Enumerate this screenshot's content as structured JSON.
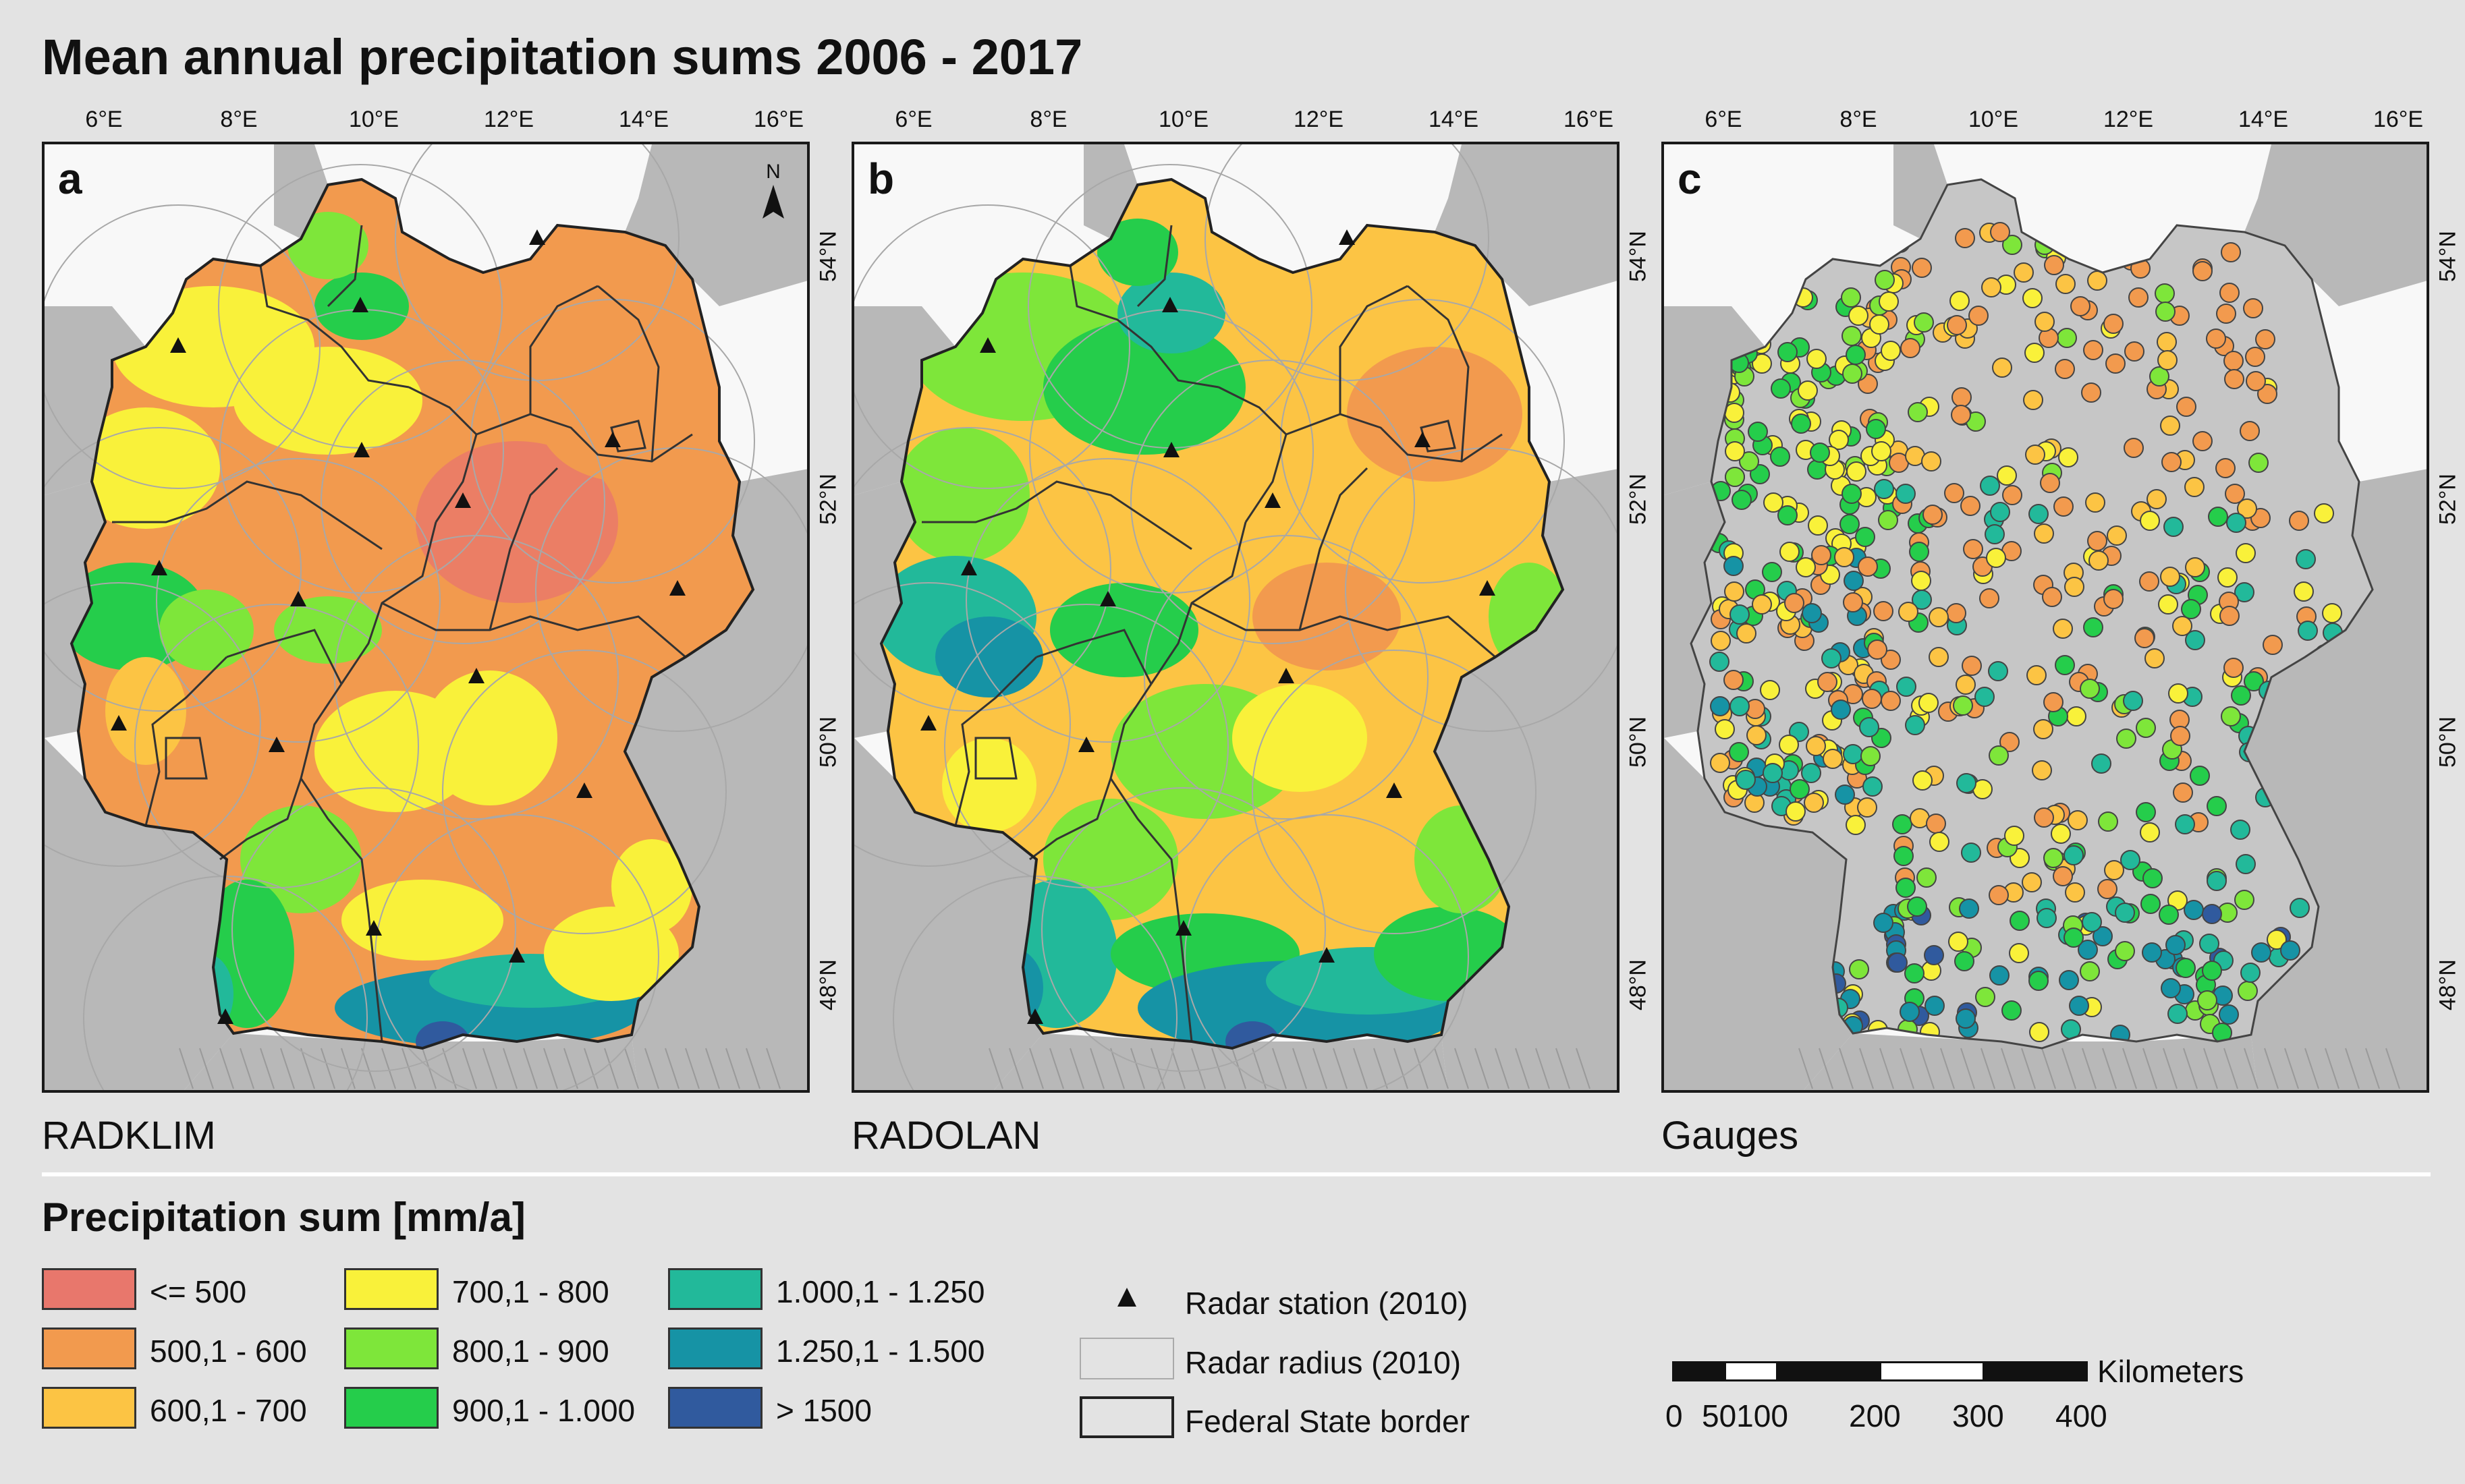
{
  "title": "Mean annual precipitation sums 2006 - 2017",
  "x_ticks": [
    "6°E",
    "8°E",
    "10°E",
    "12°E",
    "14°E",
    "16°E"
  ],
  "y_ticks": [
    "54°N",
    "52°N",
    "50°N",
    "48°N"
  ],
  "panels": [
    {
      "letter": "a",
      "name": "RADKLIM"
    },
    {
      "letter": "b",
      "name": "RADOLAN"
    },
    {
      "letter": "c",
      "name": "Gauges"
    }
  ],
  "north_arrow": "N",
  "legend": {
    "title": "Precipitation sum [mm/a]",
    "classes": [
      {
        "label": "<= 500",
        "color": "#e8776c"
      },
      {
        "label": "500,1 - 600",
        "color": "#f29a4e"
      },
      {
        "label": "600,1 - 700",
        "color": "#fcc444"
      },
      {
        "label": "700,1 - 800",
        "color": "#f9f13a"
      },
      {
        "label": "800,1 - 900",
        "color": "#7ee63a"
      },
      {
        "label": "900,1 - 1.000",
        "color": "#25cd4b"
      },
      {
        "label": "1.000,1 - 1.250",
        "color": "#22b99a"
      },
      {
        "label": "1.250,1 - 1.500",
        "color": "#1693a5"
      },
      {
        "label": "> 1500",
        "color": "#305a9e"
      }
    ],
    "symbols": [
      {
        "label": "Radar station (2010)",
        "icon": "triangle-icon"
      },
      {
        "label": "Radar radius (2010)",
        "icon": "thin-box-icon"
      },
      {
        "label": "Federal State border",
        "icon": "thick-box-icon"
      }
    ]
  },
  "scale": {
    "unit": "Kilometers",
    "labels": [
      "0",
      "50100",
      "200",
      "300",
      "400"
    ]
  }
}
